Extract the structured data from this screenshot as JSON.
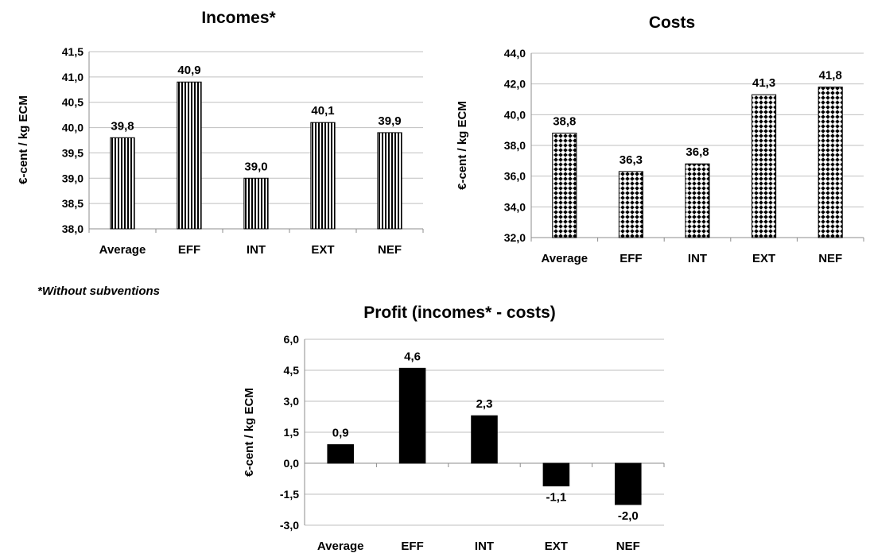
{
  "footnote": "*Without subventions",
  "chart_data": [
    {
      "id": "incomes",
      "type": "bar",
      "title": "Incomes*",
      "ylabel": "€-cent / kg ECM",
      "categories": [
        "Average",
        "EFF",
        "INT",
        "EXT",
        "NEF"
      ],
      "values": [
        39.8,
        40.9,
        39.0,
        40.1,
        39.9
      ],
      "value_labels": [
        "39,8",
        "40,9",
        "39,0",
        "40,1",
        "39,9"
      ],
      "ylim": [
        38.0,
        41.5
      ],
      "yticks": [
        38.0,
        38.5,
        39.0,
        39.5,
        40.0,
        40.5,
        41.0,
        41.5
      ],
      "ytick_labels": [
        "38,0",
        "38,5",
        "39,0",
        "39,5",
        "40,0",
        "40,5",
        "41,0",
        "41,5"
      ],
      "grid": true,
      "legend": "none",
      "fill": "vertical-stripes",
      "color": "#000000"
    },
    {
      "id": "costs",
      "type": "bar",
      "title": "Costs",
      "ylabel": "€-cent / kg ECM",
      "categories": [
        "Average",
        "EFF",
        "INT",
        "EXT",
        "NEF"
      ],
      "values": [
        38.8,
        36.3,
        36.8,
        41.3,
        41.8
      ],
      "value_labels": [
        "38,8",
        "36,3",
        "36,8",
        "41,3",
        "41,8"
      ],
      "ylim": [
        32.0,
        44.0
      ],
      "yticks": [
        32.0,
        34.0,
        36.0,
        38.0,
        40.0,
        42.0,
        44.0
      ],
      "ytick_labels": [
        "32,0",
        "34,0",
        "36,0",
        "38,0",
        "40,0",
        "42,0",
        "44,0"
      ],
      "grid": true,
      "legend": "none",
      "fill": "diamond-checker",
      "color": "#000000"
    },
    {
      "id": "profit",
      "type": "bar",
      "title": "Profit (incomes* - costs)",
      "ylabel": "€-cent / kg ECM",
      "categories": [
        "Average",
        "EFF",
        "INT",
        "EXT",
        "NEF"
      ],
      "values": [
        0.9,
        4.6,
        2.3,
        -1.1,
        -2.0
      ],
      "value_labels": [
        "0,9",
        "4,6",
        "2,3",
        "-1,1",
        "-2,0"
      ],
      "ylim": [
        -3.0,
        6.0
      ],
      "yticks": [
        -3.0,
        -1.5,
        0.0,
        1.5,
        3.0,
        4.5,
        6.0
      ],
      "ytick_labels": [
        "-3,0",
        "-1,5",
        "0,0",
        "1,5",
        "3,0",
        "4,5",
        "6,0"
      ],
      "grid": true,
      "legend": "none",
      "fill": "solid",
      "color": "#000000"
    }
  ]
}
